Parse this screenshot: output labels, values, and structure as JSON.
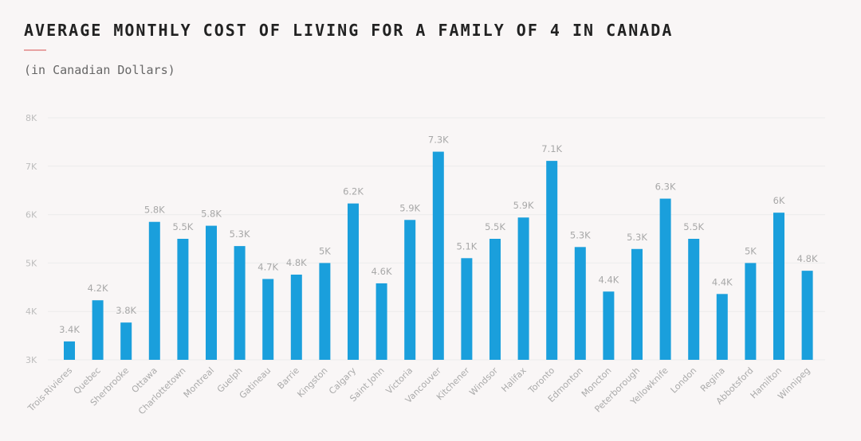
{
  "title": "AVERAGE MONTHLY COST OF LIVING FOR A FAMILY OF 4 IN CANADA",
  "subtitle": "(in Canadian Dollars)",
  "colors": {
    "bar": "#1a9fdc",
    "grid": "#ececec",
    "accent_rule": "#e8a3a3"
  },
  "chart_data": {
    "type": "bar",
    "title": "AVERAGE MONTHLY COST OF LIVING FOR A FAMILY OF 4 IN CANADA",
    "subtitle": "(in Canadian Dollars)",
    "xlabel": "",
    "ylabel": "",
    "ylim": [
      3000,
      8000
    ],
    "yticks": [
      3000,
      4000,
      5000,
      6000,
      7000,
      8000
    ],
    "ytick_labels": [
      "3K",
      "4K",
      "5K",
      "6K",
      "7K",
      "8K"
    ],
    "grid": true,
    "categories": [
      "Trois-Rivieres",
      "Quebec",
      "Sherbrooke",
      "Ottawa",
      "Charlottetown",
      "Montreal",
      "Guelph",
      "Gatineau",
      "Barrie",
      "Kingston",
      "Calgary",
      "Saint John",
      "Victoria",
      "Vancouver",
      "Kitchener",
      "Windsor",
      "Halifax",
      "Toronto",
      "Edmonton",
      "Moncton",
      "Peterborough",
      "Yellowknife",
      "London",
      "Regina",
      "Abbotsford",
      "Hamilton",
      "Winnipeg"
    ],
    "values": [
      3380,
      4230,
      3770,
      5850,
      5500,
      5770,
      5350,
      4670,
      4760,
      5000,
      6230,
      4580,
      5890,
      7300,
      5100,
      5500,
      5940,
      7110,
      5330,
      4410,
      5290,
      6330,
      5500,
      4360,
      5000,
      6040,
      4840
    ],
    "value_labels": [
      "3.4K",
      "4.2K",
      "3.8K",
      "5.8K",
      "5.5K",
      "5.8K",
      "5.3K",
      "4.7K",
      "4.8K",
      "5K",
      "6.2K",
      "4.6K",
      "5.9K",
      "7.3K",
      "5.1K",
      "5.5K",
      "5.9K",
      "7.1K",
      "5.3K",
      "4.4K",
      "5.3K",
      "6.3K",
      "5.5K",
      "4.4K",
      "5K",
      "6K",
      "4.8K"
    ]
  }
}
